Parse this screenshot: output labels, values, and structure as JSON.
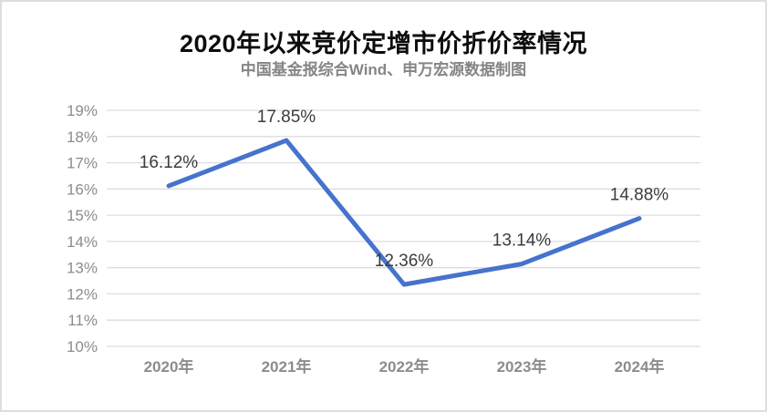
{
  "chart_data": {
    "type": "line",
    "title": "2020年以来竞价定增市价折价率情况",
    "subtitle": "中国基金报综合Wind、申万宏源数据制图",
    "categories": [
      "2020年",
      "2021年",
      "2022年",
      "2023年",
      "2024年"
    ],
    "series": [
      {
        "name": "竞价定增市价折价率",
        "values": [
          16.12,
          17.85,
          12.36,
          13.14,
          14.88
        ],
        "point_labels": [
          "16.12%",
          "17.85%",
          "12.36%",
          "13.14%",
          "14.88%"
        ]
      }
    ],
    "xlabel": "",
    "ylabel": "",
    "ylim": [
      10,
      19
    ],
    "ytick_step": 1,
    "ytick_suffix": "%",
    "grid": true,
    "legend_position": "none",
    "colors": {
      "line": "#4673CD",
      "grid": "#dddddd",
      "axis_text": "#8c8c8c",
      "data_label": "#3c3c3c",
      "title": "#0d0d0d",
      "subtitle": "#858585"
    }
  }
}
